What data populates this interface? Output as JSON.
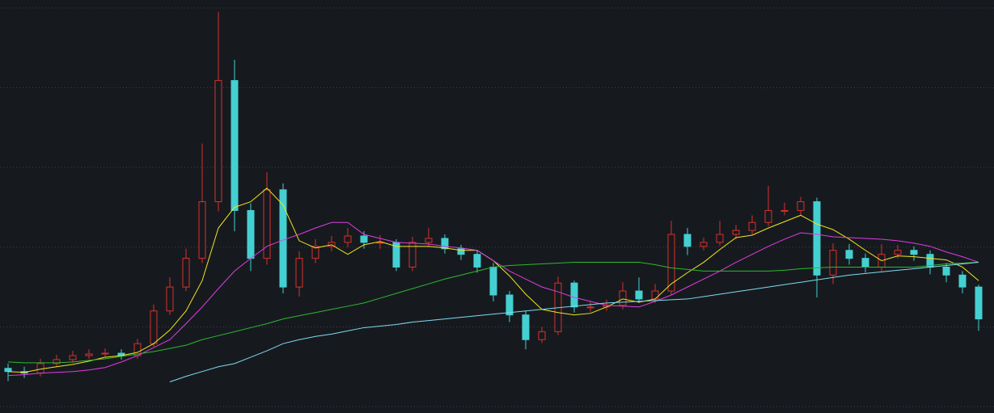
{
  "chart_data": {
    "type": "candlestick",
    "background": "#161a1f",
    "up_color": "#d9302a",
    "down_color": "#44d0d2",
    "grid": true,
    "grid_color": "#3a3f47",
    "ylim": [
      -0.8,
      51.0
    ],
    "yticks": [
      0,
      10,
      20,
      30,
      40,
      50
    ],
    "open": [
      4.8,
      4.4,
      4.2,
      5.4,
      5.9,
      6.4,
      6.6,
      6.7,
      6.4,
      7.9,
      12.0,
      15.0,
      18.6,
      25.7,
      40.9,
      24.6,
      18.6,
      27.2,
      15.0,
      18.6,
      20.1,
      20.6,
      21.4,
      20.6,
      20.6,
      17.5,
      20.6,
      21.1,
      19.8,
      19.1,
      17.5,
      14.0,
      11.5,
      8.4,
      9.4,
      15.5,
      12.5,
      12.5,
      12.7,
      14.5,
      13.5,
      14.5,
      21.6,
      20.1,
      20.6,
      21.6,
      22.1,
      23.1,
      24.6,
      24.6,
      25.7,
      16.5,
      19.6,
      18.6,
      17.5,
      19.1,
      19.6,
      19.1,
      17.5,
      16.5,
      15.0
    ],
    "high": [
      5.4,
      5.0,
      6.0,
      6.5,
      7.0,
      7.2,
      7.3,
      7.2,
      8.5,
      12.8,
      16.2,
      19.8,
      33.0,
      49.5,
      43.5,
      25.5,
      29.4,
      28.0,
      19.5,
      21.0,
      21.4,
      22.4,
      22.0,
      21.5,
      21.0,
      21.3,
      22.4,
      21.6,
      20.3,
      19.6,
      18.0,
      14.5,
      12.0,
      10.0,
      16.3,
      15.8,
      13.2,
      13.4,
      15.6,
      16.2,
      15.4,
      23.3,
      22.4,
      21.2,
      23.3,
      22.8,
      24.0,
      27.7,
      25.6,
      26.3,
      26.2,
      20.5,
      20.4,
      19.2,
      20.4,
      20.3,
      20.1,
      19.6,
      18.0,
      17.0,
      15.3
    ],
    "low": [
      3.2,
      3.6,
      3.8,
      5.0,
      5.5,
      6.0,
      6.2,
      5.9,
      6.0,
      7.5,
      11.5,
      14.5,
      18.0,
      24.5,
      22.0,
      17.0,
      17.8,
      14.2,
      13.8,
      18.0,
      19.5,
      20.0,
      19.8,
      19.8,
      17.0,
      17.0,
      20.0,
      19.2,
      18.4,
      16.8,
      13.2,
      10.6,
      7.2,
      8.0,
      9.0,
      11.8,
      11.9,
      12.0,
      12.2,
      13.0,
      13.0,
      14.0,
      19.0,
      19.6,
      20.2,
      21.0,
      21.6,
      22.6,
      24.0,
      24.0,
      13.7,
      15.4,
      17.8,
      16.8,
      17.0,
      18.6,
      18.3,
      16.6,
      15.6,
      14.2,
      9.5
    ],
    "close": [
      4.4,
      4.2,
      5.4,
      5.9,
      6.4,
      6.6,
      6.7,
      6.4,
      7.9,
      12.0,
      15.0,
      18.6,
      25.7,
      40.9,
      24.6,
      18.6,
      27.2,
      15.0,
      18.6,
      20.1,
      20.6,
      21.4,
      20.6,
      20.6,
      17.5,
      20.6,
      21.1,
      19.8,
      19.1,
      17.5,
      14.0,
      11.5,
      8.4,
      9.4,
      15.5,
      12.5,
      12.5,
      12.7,
      14.5,
      13.5,
      14.5,
      21.6,
      20.1,
      20.6,
      21.6,
      22.1,
      23.1,
      24.6,
      24.6,
      25.7,
      16.5,
      19.6,
      18.6,
      17.5,
      19.1,
      19.6,
      19.1,
      17.5,
      16.5,
      15.0,
      11.0
    ],
    "series": [
      {
        "color": "#f2e51f",
        "values": [
          4.4,
          4.3,
          4.7,
          5.0,
          5.3,
          5.7,
          6.2,
          6.4,
          6.8,
          7.9,
          9.6,
          12.0,
          15.8,
          22.4,
          25.0,
          25.7,
          27.4,
          25.3,
          20.8,
          19.9,
          20.3,
          19.1,
          20.3,
          20.7,
          20.1,
          20.1,
          20.1,
          19.9,
          19.6,
          19.6,
          18.3,
          16.4,
          14.1,
          12.2,
          11.8,
          11.5,
          11.7,
          12.5,
          13.5,
          13.1,
          13.5,
          15.4,
          16.8,
          18.1,
          19.7,
          21.2,
          21.5,
          22.4,
          23.2,
          24.0,
          22.9,
          22.2,
          21.0,
          19.6,
          18.3,
          18.9,
          18.8,
          18.6,
          18.4,
          17.5,
          15.8
        ]
      },
      {
        "color": "#e03ce0",
        "values": [
          3.9,
          4.0,
          4.2,
          4.3,
          4.4,
          4.6,
          4.9,
          5.6,
          6.4,
          7.4,
          8.4,
          10.4,
          12.5,
          14.8,
          17.0,
          18.6,
          20.1,
          20.9,
          21.6,
          22.4,
          23.1,
          23.1,
          21.6,
          21.1,
          20.6,
          20.5,
          20.4,
          20.1,
          19.9,
          19.6,
          18.3,
          17.0,
          16.0,
          15.0,
          14.4,
          13.7,
          13.2,
          12.7,
          12.6,
          12.5,
          13.2,
          14.0,
          15.0,
          16.0,
          17.0,
          18.1,
          19.1,
          20.1,
          21.0,
          21.8,
          21.6,
          21.3,
          21.2,
          21.1,
          21.0,
          20.8,
          20.5,
          20.1,
          19.4,
          18.8,
          18.1
        ]
      },
      {
        "color": "#2fb82f",
        "values": [
          5.6,
          5.5,
          5.5,
          5.5,
          5.6,
          5.8,
          6.0,
          6.3,
          6.6,
          6.9,
          7.3,
          7.7,
          8.4,
          8.9,
          9.4,
          9.9,
          10.4,
          11.0,
          11.4,
          11.8,
          12.2,
          12.6,
          13.0,
          13.6,
          14.2,
          14.8,
          15.4,
          16.0,
          16.5,
          17.0,
          17.5,
          17.7,
          17.8,
          17.9,
          18.0,
          18.1,
          18.1,
          18.1,
          18.1,
          18.1,
          17.8,
          17.4,
          17.2,
          17.0,
          17.0,
          17.0,
          17.0,
          17.0,
          17.1,
          17.3,
          17.4,
          17.5,
          17.5,
          17.5,
          17.5,
          17.5,
          17.5,
          17.7,
          17.9,
          18.0,
          18.1
        ]
      },
      {
        "color": "#7fdcef",
        "values": [
          null,
          null,
          null,
          null,
          null,
          null,
          null,
          null,
          null,
          null,
          3.1,
          3.8,
          4.4,
          5.0,
          5.4,
          6.2,
          7.0,
          7.9,
          8.4,
          8.8,
          9.1,
          9.5,
          9.9,
          10.1,
          10.3,
          10.6,
          10.8,
          11.0,
          11.2,
          11.4,
          11.6,
          11.8,
          12.0,
          12.2,
          12.4,
          12.6,
          12.8,
          13.0,
          13.1,
          13.2,
          13.3,
          13.4,
          13.5,
          13.8,
          14.1,
          14.4,
          14.7,
          15.0,
          15.3,
          15.6,
          15.9,
          16.2,
          16.5,
          16.7,
          16.9,
          17.1,
          17.3,
          17.5,
          17.7,
          17.9,
          18.1
        ]
      }
    ]
  }
}
